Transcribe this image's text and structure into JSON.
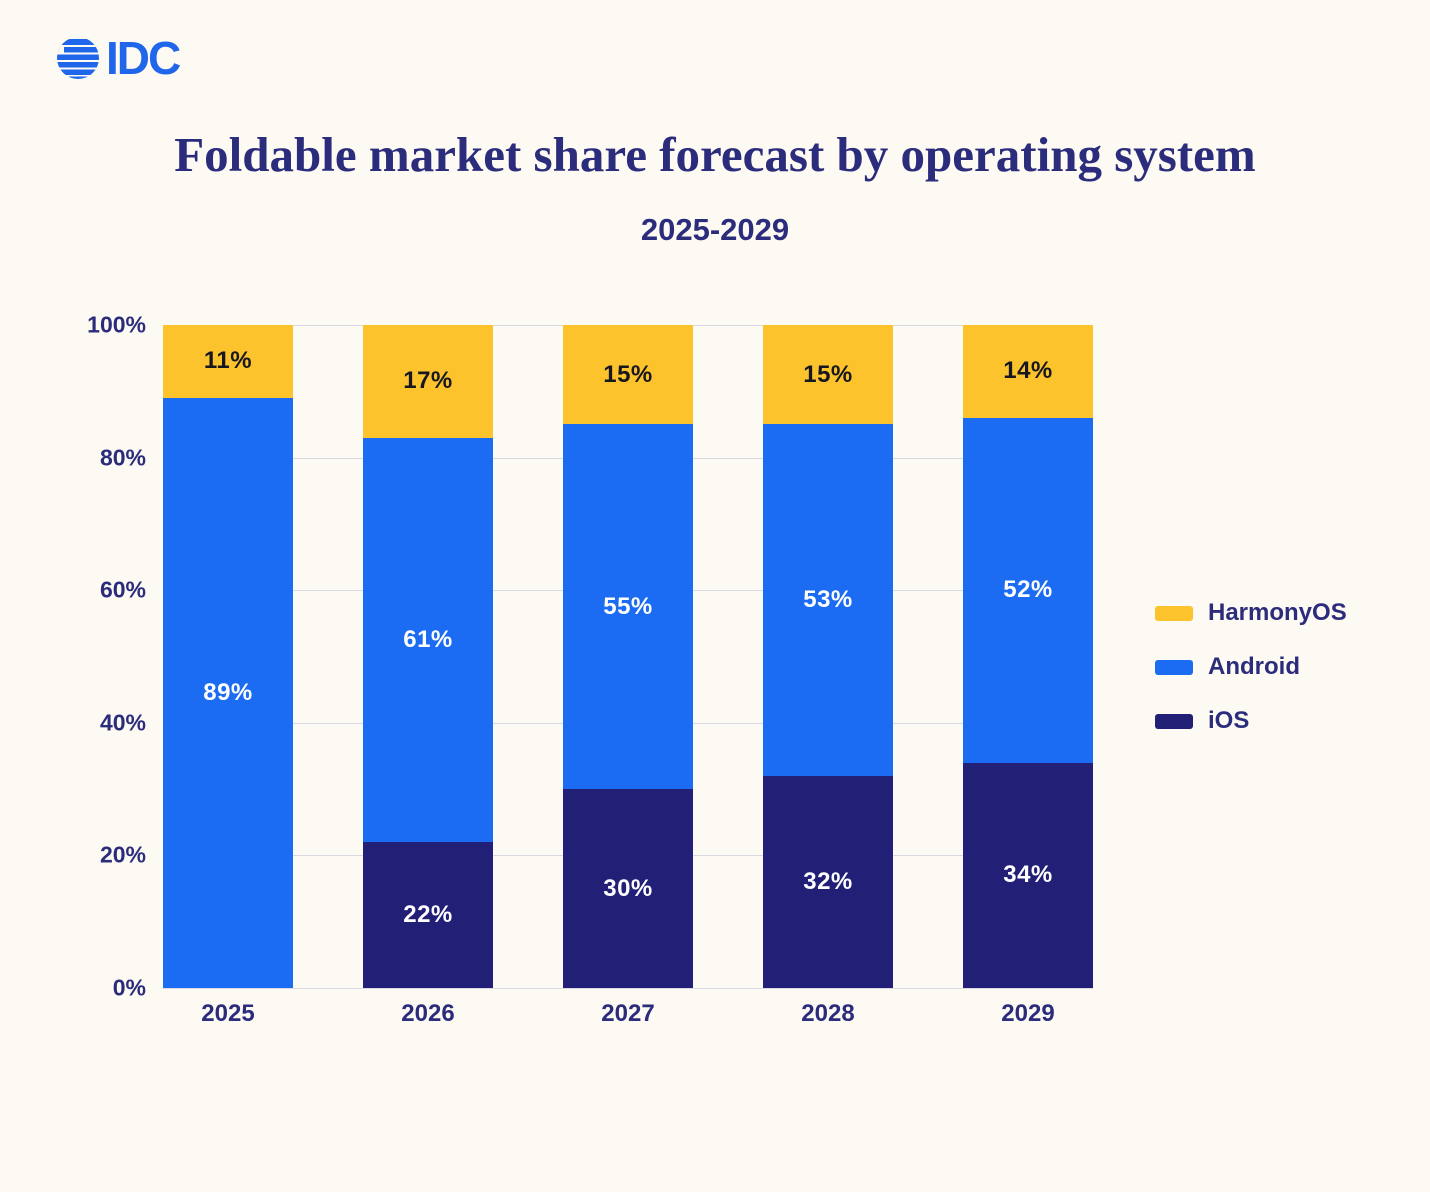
{
  "logo": {
    "text": "IDC",
    "color": "#2066EB"
  },
  "title": "Foldable market share forecast by operating system",
  "subtitle": "2025-2029",
  "colors": {
    "background": "#FDF9F3",
    "text_navy": "#2B2C7B",
    "gridline": "#D9D8E3",
    "harmonyos": "#FCC32D",
    "android": "#1B6CF2",
    "ios": "#211F76",
    "label_on_yellow": "#17171F",
    "label_on_blue": "#FFFFFF"
  },
  "chart_data": {
    "type": "bar",
    "stacked": true,
    "title": "Foldable market share forecast by operating system",
    "subtitle": "2025-2029",
    "categories": [
      "2025",
      "2026",
      "2027",
      "2028",
      "2029"
    ],
    "series": [
      {
        "name": "iOS",
        "color": "#211F76",
        "label_color": "#FFFFFF",
        "values": [
          0,
          22,
          30,
          32,
          34
        ]
      },
      {
        "name": "Android",
        "color": "#1B6CF2",
        "label_color": "#FFFFFF",
        "values": [
          89,
          61,
          55,
          53,
          52
        ]
      },
      {
        "name": "HarmonyOS",
        "color": "#FCC32D",
        "label_color": "#17171F",
        "values": [
          11,
          17,
          15,
          15,
          14
        ]
      }
    ],
    "value_suffix": "%",
    "xlabel": "",
    "ylabel": "",
    "ylim": [
      0,
      100
    ],
    "yticks": [
      "0%",
      "20%",
      "40%",
      "60%",
      "80%",
      "100%"
    ],
    "grid": true,
    "legend_position": "right",
    "legend_order": [
      "HarmonyOS",
      "Android",
      "iOS"
    ]
  }
}
